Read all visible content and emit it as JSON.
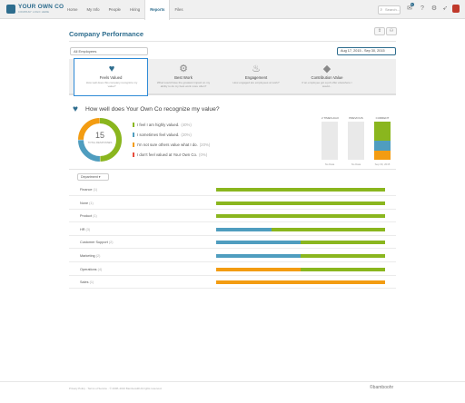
{
  "app": {
    "logo_text": "YOUR OWN CO",
    "logo_sub": "COMPANY LOGO HERE"
  },
  "nav": [
    "Home",
    "My Info",
    "People",
    "Hiring",
    "Reports",
    "Files"
  ],
  "nav_active": "Reports",
  "search": {
    "placeholder": "Search..."
  },
  "notifications_count": "1",
  "page": {
    "title": "Company Performance",
    "employee_filter": "All Employees",
    "date_range": "Aug 17, 2015 - Sep 30, 2015"
  },
  "tabs": [
    {
      "label": "Feels Valued",
      "desc": "How well does this company recognize my value?",
      "icon": "heart-icon"
    },
    {
      "label": "Best Work",
      "desc": "What would have the greatest impact on my ability to do my best work more often?",
      "icon": "medal-icon"
    },
    {
      "label": "Engagement",
      "desc": "How engaged are employees at work?",
      "icon": "flame-icon"
    },
    {
      "label": "Contribution Value",
      "desc": "If an employee got a job offer elsewhere I would...",
      "icon": "diamond-icon"
    }
  ],
  "question": {
    "text": "How well does Your Own Co recognize my value?",
    "total": "15",
    "total_label": "TOTAL RESPONSES",
    "responses": [
      {
        "label": "I feel I am highly valued.",
        "pct": "(40%)",
        "value": 40,
        "color": "#8ab61e"
      },
      {
        "label": "I sometimes feel valued.",
        "pct": "(20%)",
        "value": 20,
        "color": "#4f9dbf"
      },
      {
        "label": "I'm not sure others value what I do.",
        "pct": "(20%)",
        "value": 20,
        "color": "#f39c12"
      },
      {
        "label": "I don't feel valued at Your Own Co.",
        "pct": "(0%)",
        "value": 0,
        "color": "#e74c3c"
      }
    ]
  },
  "history": [
    {
      "head": "2 TIMES AGO",
      "foot": "No Data",
      "segments": []
    },
    {
      "head": "PREVIOUS",
      "foot": "No Data",
      "segments": []
    },
    {
      "head": "CURRENT",
      "foot": "Sep 30, 2015",
      "segments": [
        {
          "value": 40,
          "color": "#8ab61e"
        },
        {
          "value": 20,
          "color": "#4f9dbf"
        },
        {
          "value": 20,
          "color": "#f39c12"
        }
      ]
    }
  ],
  "dept_filter": "Department",
  "departments": [
    {
      "name": "Finance",
      "count": "(1)",
      "segments": [
        {
          "value": 100,
          "color": "#8ab61e"
        }
      ]
    },
    {
      "name": "None",
      "count": "(1)",
      "segments": [
        {
          "value": 100,
          "color": "#8ab61e"
        }
      ]
    },
    {
      "name": "Product",
      "count": "(1)",
      "segments": [
        {
          "value": 100,
          "color": "#8ab61e"
        }
      ]
    },
    {
      "name": "HR",
      "count": "(3)",
      "segments": [
        {
          "value": 33,
          "color": "#4f9dbf"
        },
        {
          "value": 67,
          "color": "#8ab61e"
        }
      ]
    },
    {
      "name": "Customer Support",
      "count": "(2)",
      "segments": [
        {
          "value": 50,
          "color": "#4f9dbf"
        },
        {
          "value": 50,
          "color": "#8ab61e"
        }
      ]
    },
    {
      "name": "Marketing",
      "count": "(2)",
      "segments": [
        {
          "value": 50,
          "color": "#4f9dbf"
        },
        {
          "value": 50,
          "color": "#8ab61e"
        }
      ]
    },
    {
      "name": "Operations",
      "count": "(4)",
      "segments": [
        {
          "value": 50,
          "color": "#f39c12"
        },
        {
          "value": 50,
          "color": "#8ab61e"
        }
      ]
    },
    {
      "name": "Sales",
      "count": "(1)",
      "segments": [
        {
          "value": 100,
          "color": "#f39c12"
        }
      ]
    }
  ],
  "footer": {
    "text": "Privacy Policy  ·  Terms of Service  ·  © 2008–2016 BambooHR All rights reserved.",
    "logo": "©bamboohr"
  }
}
